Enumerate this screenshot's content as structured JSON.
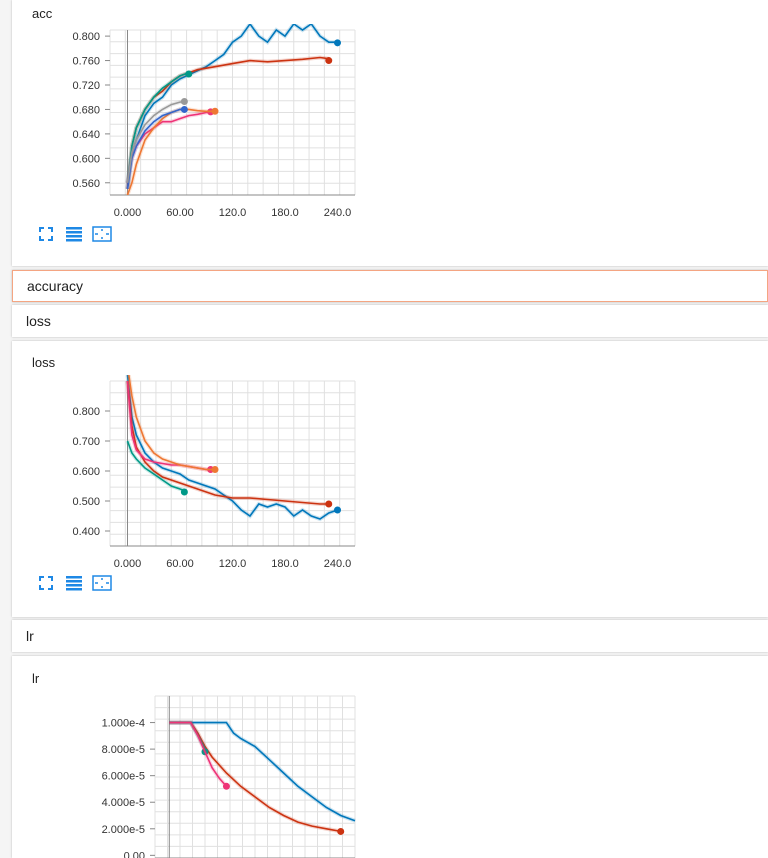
{
  "sections": [
    {
      "label": "accuracy",
      "active": true
    },
    {
      "label": "loss",
      "active": false
    },
    {
      "label": "lr",
      "active": false
    }
  ],
  "tools": {
    "fit": "fit-to-data-icon",
    "data": "data-table-icon",
    "expand": "expand-icon"
  },
  "colors": {
    "accent": "#f4a582",
    "tool": "#1e88e5"
  },
  "chart_data": [
    {
      "type": "line",
      "title": "acc",
      "x_ticks": [
        "0.000",
        "60.00",
        "120.0",
        "180.0",
        "240.0"
      ],
      "y_ticks": [
        "0.560",
        "0.600",
        "0.640",
        "0.680",
        "0.720",
        "0.760",
        "0.800"
      ],
      "xlim": [
        -20,
        260
      ],
      "ylim": [
        0.54,
        0.81
      ],
      "series": [
        {
          "color": "#0077bb",
          "points": [
            [
              0,
              0.55
            ],
            [
              5,
              0.61
            ],
            [
              10,
              0.63
            ],
            [
              20,
              0.67
            ],
            [
              30,
              0.69
            ],
            [
              40,
              0.7
            ],
            [
              50,
              0.72
            ],
            [
              60,
              0.73
            ],
            [
              75,
              0.74
            ],
            [
              90,
              0.75
            ],
            [
              100,
              0.76
            ],
            [
              110,
              0.77
            ],
            [
              120,
              0.79
            ],
            [
              130,
              0.8
            ],
            [
              140,
              0.82
            ],
            [
              150,
              0.8
            ],
            [
              160,
              0.79
            ],
            [
              170,
              0.81
            ],
            [
              180,
              0.8
            ],
            [
              190,
              0.82
            ],
            [
              200,
              0.81
            ],
            [
              210,
              0.82
            ],
            [
              220,
              0.8
            ],
            [
              230,
              0.79
            ],
            [
              240,
              0.79
            ]
          ],
          "end": [
            240,
            0.789
          ]
        },
        {
          "color": "#cc3311",
          "points": [
            [
              0,
              0.55
            ],
            [
              5,
              0.62
            ],
            [
              10,
              0.65
            ],
            [
              20,
              0.68
            ],
            [
              30,
              0.7
            ],
            [
              40,
              0.71
            ],
            [
              50,
              0.725
            ],
            [
              60,
              0.735
            ],
            [
              70,
              0.74
            ],
            [
              80,
              0.745
            ],
            [
              100,
              0.75
            ],
            [
              120,
              0.755
            ],
            [
              140,
              0.76
            ],
            [
              160,
              0.758
            ],
            [
              180,
              0.76
            ],
            [
              200,
              0.762
            ],
            [
              220,
              0.765
            ],
            [
              230,
              0.763
            ]
          ],
          "end": [
            230,
            0.76
          ]
        },
        {
          "color": "#009988",
          "points": [
            [
              0,
              0.56
            ],
            [
              5,
              0.62
            ],
            [
              10,
              0.65
            ],
            [
              20,
              0.68
            ],
            [
              30,
              0.7
            ],
            [
              40,
              0.715
            ],
            [
              50,
              0.725
            ],
            [
              60,
              0.735
            ],
            [
              70,
              0.74
            ]
          ],
          "end": [
            70,
            0.738
          ]
        },
        {
          "color": "#ee3377",
          "points": [
            [
              0,
              0.56
            ],
            [
              5,
              0.6
            ],
            [
              10,
              0.62
            ],
            [
              20,
              0.64
            ],
            [
              30,
              0.65
            ],
            [
              40,
              0.66
            ],
            [
              50,
              0.66
            ],
            [
              60,
              0.665
            ],
            [
              70,
              0.67
            ],
            [
              80,
              0.672
            ],
            [
              90,
              0.675
            ],
            [
              95,
              0.675
            ]
          ],
          "end": [
            95,
            0.676
          ]
        },
        {
          "color": "#ee7733",
          "points": [
            [
              0,
              0.54
            ],
            [
              5,
              0.56
            ],
            [
              10,
              0.59
            ],
            [
              20,
              0.63
            ],
            [
              30,
              0.65
            ],
            [
              40,
              0.665
            ],
            [
              50,
              0.675
            ],
            [
              60,
              0.68
            ],
            [
              70,
              0.68
            ],
            [
              80,
              0.678
            ],
            [
              90,
              0.677
            ],
            [
              100,
              0.677
            ]
          ],
          "end": [
            100,
            0.677
          ]
        },
        {
          "color": "#3366cc",
          "points": [
            [
              0,
              0.55
            ],
            [
              5,
              0.6
            ],
            [
              10,
              0.62
            ],
            [
              20,
              0.645
            ],
            [
              30,
              0.66
            ],
            [
              40,
              0.67
            ],
            [
              50,
              0.675
            ],
            [
              60,
              0.68
            ],
            [
              65,
              0.68
            ]
          ],
          "end": [
            65,
            0.68
          ]
        },
        {
          "color": "#999999",
          "points": [
            [
              0,
              0.56
            ],
            [
              5,
              0.61
            ],
            [
              10,
              0.63
            ],
            [
              20,
              0.655
            ],
            [
              30,
              0.67
            ],
            [
              40,
              0.68
            ],
            [
              50,
              0.688
            ],
            [
              60,
              0.692
            ],
            [
              65,
              0.693
            ]
          ],
          "end": [
            65,
            0.693
          ]
        }
      ]
    },
    {
      "type": "line",
      "title": "loss",
      "x_ticks": [
        "0.000",
        "60.00",
        "120.0",
        "180.0",
        "240.0"
      ],
      "y_ticks": [
        "0.400",
        "0.500",
        "0.600",
        "0.700",
        "0.800"
      ],
      "xlim": [
        -20,
        260
      ],
      "ylim": [
        0.35,
        0.9
      ],
      "series": [
        {
          "color": "#0077bb",
          "points": [
            [
              0,
              0.92
            ],
            [
              5,
              0.78
            ],
            [
              10,
              0.72
            ],
            [
              20,
              0.66
            ],
            [
              30,
              0.63
            ],
            [
              40,
              0.61
            ],
            [
              50,
              0.6
            ],
            [
              60,
              0.59
            ],
            [
              70,
              0.57
            ],
            [
              80,
              0.56
            ],
            [
              100,
              0.54
            ],
            [
              110,
              0.52
            ],
            [
              120,
              0.5
            ],
            [
              130,
              0.47
            ],
            [
              140,
              0.45
            ],
            [
              150,
              0.49
            ],
            [
              160,
              0.48
            ],
            [
              170,
              0.49
            ],
            [
              180,
              0.48
            ],
            [
              190,
              0.45
            ],
            [
              200,
              0.47
            ],
            [
              210,
              0.45
            ],
            [
              220,
              0.44
            ],
            [
              230,
              0.46
            ],
            [
              240,
              0.47
            ]
          ],
          "end": [
            240,
            0.47
          ]
        },
        {
          "color": "#cc3311",
          "points": [
            [
              0,
              0.9
            ],
            [
              5,
              0.75
            ],
            [
              10,
              0.68
            ],
            [
              20,
              0.63
            ],
            [
              30,
              0.6
            ],
            [
              40,
              0.58
            ],
            [
              60,
              0.56
            ],
            [
              80,
              0.54
            ],
            [
              100,
              0.52
            ],
            [
              120,
              0.51
            ],
            [
              140,
              0.51
            ],
            [
              160,
              0.505
            ],
            [
              180,
              0.5
            ],
            [
              200,
              0.495
            ],
            [
              220,
              0.49
            ],
            [
              230,
              0.49
            ]
          ],
          "end": [
            230,
            0.49
          ]
        },
        {
          "color": "#009988",
          "points": [
            [
              0,
              0.7
            ],
            [
              5,
              0.66
            ],
            [
              10,
              0.64
            ],
            [
              20,
              0.61
            ],
            [
              30,
              0.59
            ],
            [
              40,
              0.57
            ],
            [
              50,
              0.55
            ],
            [
              60,
              0.54
            ],
            [
              65,
              0.535
            ]
          ],
          "end": [
            65,
            0.53
          ]
        },
        {
          "color": "#ee3377",
          "points": [
            [
              0,
              0.9
            ],
            [
              5,
              0.72
            ],
            [
              10,
              0.67
            ],
            [
              20,
              0.64
            ],
            [
              30,
              0.63
            ],
            [
              40,
              0.625
            ],
            [
              50,
              0.62
            ],
            [
              60,
              0.62
            ],
            [
              70,
              0.615
            ],
            [
              80,
              0.61
            ],
            [
              90,
              0.605
            ],
            [
              95,
              0.605
            ]
          ],
          "end": [
            95,
            0.605
          ]
        },
        {
          "color": "#ee7733",
          "points": [
            [
              0,
              0.95
            ],
            [
              5,
              0.85
            ],
            [
              10,
              0.78
            ],
            [
              20,
              0.7
            ],
            [
              30,
              0.66
            ],
            [
              40,
              0.64
            ],
            [
              50,
              0.63
            ],
            [
              60,
              0.62
            ],
            [
              70,
              0.615
            ],
            [
              80,
              0.61
            ],
            [
              90,
              0.605
            ],
            [
              100,
              0.605
            ]
          ],
          "end": [
            100,
            0.605
          ]
        }
      ]
    },
    {
      "type": "line",
      "title": "lr",
      "x_ticks": [],
      "y_ticks": [
        "0.00",
        "2.000e-5",
        "4.000e-5",
        "6.000e-5",
        "8.000e-5",
        "1.000e-4"
      ],
      "y_tick_values": [
        0,
        2e-05,
        4e-05,
        6e-05,
        8e-05,
        0.0001
      ],
      "xlim": [
        -20,
        260
      ],
      "ylim": [
        -2e-06,
        0.00012
      ],
      "series": [
        {
          "color": "#0077bb",
          "points": [
            [
              0,
              0.0001
            ],
            [
              80,
              0.0001
            ],
            [
              90,
              9.2e-05
            ],
            [
              100,
              8.8e-05
            ],
            [
              120,
              8.2e-05
            ],
            [
              140,
              7.2e-05
            ],
            [
              160,
              6.2e-05
            ],
            [
              180,
              5.2e-05
            ],
            [
              200,
              4.4e-05
            ],
            [
              220,
              3.6e-05
            ],
            [
              240,
              3e-05
            ],
            [
              260,
              2.6e-05
            ]
          ],
          "end": null
        },
        {
          "color": "#cc3311",
          "points": [
            [
              0,
              0.0001
            ],
            [
              30,
              0.0001
            ],
            [
              40,
              9.2e-05
            ],
            [
              50,
              8.2e-05
            ],
            [
              60,
              7.4e-05
            ],
            [
              80,
              6.2e-05
            ],
            [
              100,
              5.2e-05
            ],
            [
              120,
              4.4e-05
            ],
            [
              140,
              3.6e-05
            ],
            [
              160,
              3e-05
            ],
            [
              180,
              2.5e-05
            ],
            [
              200,
              2.2e-05
            ],
            [
              220,
              2e-05
            ],
            [
              240,
              1.8e-05
            ]
          ],
          "end": [
            240,
            1.8e-05
          ]
        },
        {
          "color": "#009988",
          "points": [
            [
              0,
              0.0001
            ],
            [
              30,
              0.0001
            ],
            [
              40,
              9e-05
            ],
            [
              50,
              8e-05
            ]
          ],
          "end": [
            50,
            7.8e-05
          ]
        },
        {
          "color": "#ee3377",
          "points": [
            [
              0,
              0.0001
            ],
            [
              30,
              0.0001
            ],
            [
              40,
              9e-05
            ],
            [
              50,
              7.8e-05
            ],
            [
              60,
              6.6e-05
            ],
            [
              70,
              5.8e-05
            ],
            [
              80,
              5.2e-05
            ]
          ],
          "end": [
            80,
            5.2e-05
          ]
        }
      ]
    }
  ]
}
